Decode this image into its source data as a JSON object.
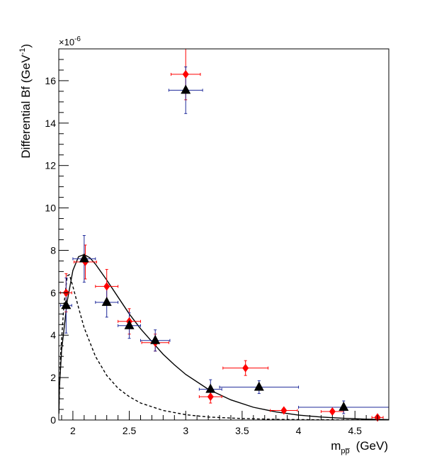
{
  "chart_data": {
    "type": "scatter",
    "title": "",
    "xlabel": "m",
    "xlabel_sub": "pp̅",
    "xlabel_unit": "(GeV)",
    "ylabel": "Differential Bf  (GeV",
    "ylabel_sup": "-1",
    "ylabel_close": ")",
    "y_multiplier": "×10",
    "y_multiplier_exp": "-6",
    "xlim": [
      1.875,
      4.8
    ],
    "ylim": [
      0,
      17.5
    ],
    "x_tick_labels": [
      "2",
      "2.5",
      "3",
      "3.5",
      "4",
      "4.5"
    ],
    "x_tick_values": [
      2,
      2.5,
      3,
      3.5,
      4,
      4.5
    ],
    "y_tick_labels": [
      "0",
      "2",
      "4",
      "6",
      "8",
      "10",
      "12",
      "14",
      "16"
    ],
    "y_tick_values": [
      0,
      2,
      4,
      6,
      8,
      10,
      12,
      14,
      16
    ],
    "grid": false,
    "series": [
      {
        "name": "red diamonds",
        "marker": "diamond",
        "color": "#ff0000",
        "points": [
          {
            "x": 1.94,
            "y": 6.0,
            "xerr": 0.05,
            "yerr": 0.9
          },
          {
            "x": 2.11,
            "y": 7.45,
            "xerr": 0.1,
            "yerr": 0.8
          },
          {
            "x": 2.3,
            "y": 6.3,
            "xerr": 0.1,
            "yerr": 0.8
          },
          {
            "x": 2.5,
            "y": 4.65,
            "xerr": 0.1,
            "yerr": 0.6
          },
          {
            "x": 2.73,
            "y": 3.65,
            "xerr": 0.12,
            "yerr": 0.4
          },
          {
            "x": 3.0,
            "y": 16.3,
            "xerr": 0.13,
            "yerr": 1.2
          },
          {
            "x": 3.22,
            "y": 1.1,
            "xerr": 0.1,
            "yerr": 0.3
          },
          {
            "x": 3.53,
            "y": 2.45,
            "xerr": 0.2,
            "yerr": 0.35
          },
          {
            "x": 3.87,
            "y": 0.45,
            "xerr": 0.12,
            "yerr": 0.1
          },
          {
            "x": 4.3,
            "y": 0.4,
            "xerr": 0.1,
            "yerr": 0.1
          },
          {
            "x": 4.7,
            "y": 0.12,
            "xerr": 0.05,
            "yerr": 0.05
          }
        ]
      },
      {
        "name": "black triangles",
        "marker": "triangle",
        "color": "#000000",
        "errcolor": "#1f2a9a",
        "points": [
          {
            "x": 1.94,
            "y": 5.4,
            "xerr": 0.05,
            "yerr": 1.3
          },
          {
            "x": 2.1,
            "y": 7.6,
            "xerr": 0.1,
            "yerr": 1.1
          },
          {
            "x": 2.3,
            "y": 5.55,
            "xerr": 0.1,
            "yerr": 0.7
          },
          {
            "x": 2.5,
            "y": 4.45,
            "xerr": 0.1,
            "yerr": 0.6
          },
          {
            "x": 2.73,
            "y": 3.75,
            "xerr": 0.13,
            "yerr": 0.5
          },
          {
            "x": 3.0,
            "y": 15.55,
            "xerr": 0.15,
            "yerr": 1.1
          },
          {
            "x": 3.22,
            "y": 1.45,
            "xerr": 0.1,
            "yerr": 0.45
          },
          {
            "x": 3.65,
            "y": 1.55,
            "xerr": 0.35,
            "yerr": 0.3
          },
          {
            "x": 4.4,
            "y": 0.6,
            "xerr": 0.4,
            "yerr": 0.3
          }
        ]
      }
    ],
    "curves": [
      {
        "name": "solid fit",
        "style": "solid",
        "color": "#000000",
        "points": [
          [
            1.876,
            0.3
          ],
          [
            1.88,
            1.5
          ],
          [
            1.9,
            3.3
          ],
          [
            1.95,
            5.6
          ],
          [
            2.0,
            7.05
          ],
          [
            2.05,
            7.7
          ],
          [
            2.1,
            7.8
          ],
          [
            2.15,
            7.65
          ],
          [
            2.2,
            7.35
          ],
          [
            2.3,
            6.6
          ],
          [
            2.4,
            5.8
          ],
          [
            2.5,
            5.0
          ],
          [
            2.6,
            4.3
          ],
          [
            2.7,
            3.7
          ],
          [
            2.8,
            3.1
          ],
          [
            2.9,
            2.6
          ],
          [
            3.0,
            2.15
          ],
          [
            3.2,
            1.45
          ],
          [
            3.4,
            0.95
          ],
          [
            3.6,
            0.6
          ],
          [
            3.8,
            0.38
          ],
          [
            4.0,
            0.23
          ],
          [
            4.2,
            0.14
          ],
          [
            4.4,
            0.08
          ],
          [
            4.6,
            0.04
          ],
          [
            4.8,
            0.02
          ]
        ]
      },
      {
        "name": "dashed curve",
        "style": "dashed",
        "color": "#000000",
        "points": [
          [
            1.876,
            0.5
          ],
          [
            1.89,
            3.0
          ],
          [
            1.92,
            5.4
          ],
          [
            1.95,
            6.8
          ],
          [
            1.97,
            6.85
          ],
          [
            2.0,
            6.3
          ],
          [
            2.05,
            5.3
          ],
          [
            2.1,
            4.35
          ],
          [
            2.2,
            3.0
          ],
          [
            2.3,
            2.1
          ],
          [
            2.4,
            1.5
          ],
          [
            2.5,
            1.1
          ],
          [
            2.6,
            0.8
          ],
          [
            2.8,
            0.45
          ],
          [
            3.0,
            0.25
          ],
          [
            3.2,
            0.14
          ],
          [
            3.5,
            0.07
          ],
          [
            3.8,
            0.03
          ],
          [
            4.2,
            0.01
          ],
          [
            4.8,
            0.0
          ]
        ]
      }
    ]
  }
}
